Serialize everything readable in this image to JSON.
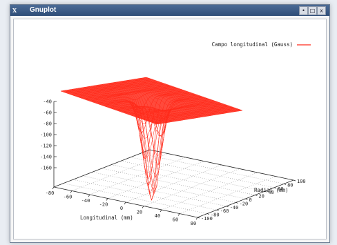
{
  "window": {
    "title": "Gnuplot",
    "icon_glyph": "X",
    "buttons": [
      "•",
      "□",
      "x"
    ]
  },
  "chart_data": {
    "type": "surface",
    "legend": {
      "label": "Campo longitudinal (Gauss)",
      "placement": "top-right",
      "color": "#ff2a1a"
    },
    "xlabel": "Longitudinal (mm)",
    "ylabel": "Radial (mm)",
    "zlabel": "",
    "x_range": [
      -80,
      80
    ],
    "y_range": [
      -100,
      100
    ],
    "z_range": [
      -160,
      -40
    ],
    "x_ticks": [
      "-80",
      "-60",
      "-40",
      "-20",
      "0",
      "20",
      "40",
      "60",
      "80"
    ],
    "y_ticks": [
      "-100",
      "-80",
      "-60",
      "-40",
      "-20",
      "0",
      "20",
      "40",
      "60",
      "80",
      "100"
    ],
    "z_ticks": [
      "-40",
      "-60",
      "-80",
      "-100",
      "-120",
      "-140",
      "-160"
    ],
    "surface_baseline_z": -50,
    "min_field": {
      "x": 0,
      "y": 0,
      "z": -125
    },
    "grid": true,
    "line_color": "#ff2a1a"
  }
}
